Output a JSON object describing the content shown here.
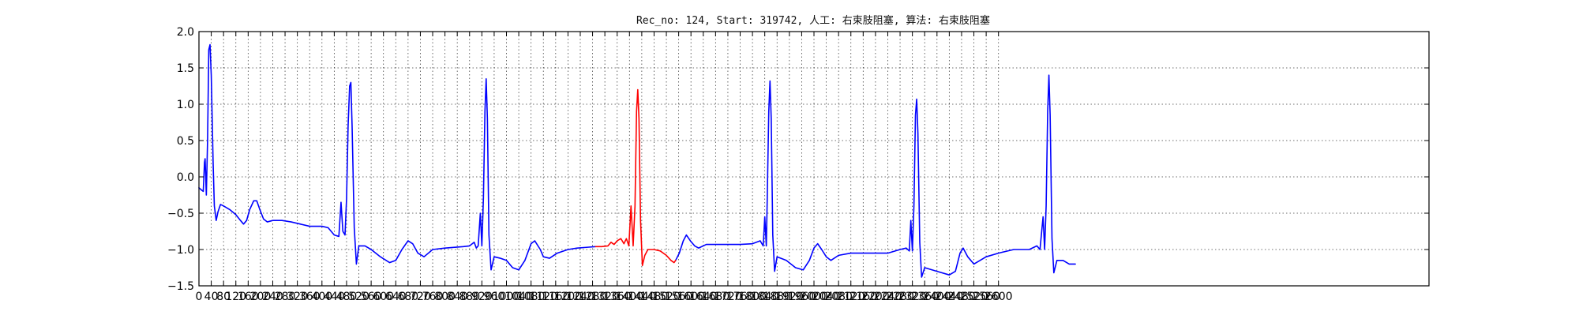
{
  "chart_data": {
    "type": "line",
    "title": "Rec_no: 124, Start: 319742, 人工: 右束肢阻塞, 算法: 右束肢阻塞",
    "xlabel": "",
    "ylabel": "",
    "xlim": [
      0,
      4000
    ],
    "ylim": [
      -1.5,
      2.0
    ],
    "grid": true,
    "yticks": [
      -1.5,
      -1.0,
      -0.5,
      0.0,
      0.5,
      1.0,
      1.5,
      2.0
    ],
    "ytick_labels": [
      "−1.5",
      "−1.0",
      "−0.5",
      "0.0",
      "0.5",
      "1.0",
      "1.5",
      "2.0"
    ],
    "xticks": [
      0,
      40,
      80,
      120,
      160,
      200,
      240,
      280,
      320,
      360,
      400,
      440,
      480,
      520,
      560,
      600,
      640,
      680,
      720,
      760,
      800,
      840,
      880,
      920,
      960,
      1000,
      1040,
      1080,
      1120,
      1160,
      1200,
      1240,
      1280,
      1320,
      1360,
      1400,
      1440,
      1480,
      1520,
      1560,
      1600,
      1640,
      1680,
      1720,
      1760,
      1800,
      1840,
      1880,
      1920,
      1960,
      2000,
      2040,
      2080,
      2120,
      2160,
      2200,
      2240,
      2280,
      2320,
      2360,
      2400,
      2440,
      2480,
      2520,
      2560,
      2600
    ],
    "xtick_labels": [
      "0",
      "40",
      "80",
      "120",
      "160",
      "200",
      "240",
      "280",
      "320",
      "360",
      "400",
      "440",
      "480",
      "520",
      "560",
      "600",
      "640",
      "680",
      "720",
      "760",
      "800",
      "840",
      "880",
      "920",
      "960",
      "1000",
      "1040",
      "1080",
      "1120",
      "1160",
      "1200",
      "1240",
      "1280",
      "1320",
      "1360",
      "1400",
      "1440",
      "1480",
      "1520",
      "1560",
      "1600",
      "1640",
      "1680",
      "1720",
      "1760",
      "1800",
      "1840",
      "1880",
      "1920",
      "1960",
      "2000",
      "2040",
      "2080",
      "2120",
      "2160",
      "2200",
      "2240",
      "2280",
      "2320",
      "2360",
      "2400",
      "2440",
      "2480",
      "2520",
      "2560",
      "2600"
    ],
    "series": [
      {
        "color": "#0000ff",
        "segments": [
          [
            [
              0,
              -0.15
            ],
            [
              8,
              -0.18
            ],
            [
              14,
              -0.2
            ],
            [
              18,
              0.2
            ],
            [
              20,
              0.25
            ],
            [
              24,
              -0.25
            ],
            [
              28,
              0.5
            ],
            [
              32,
              1.75
            ],
            [
              36,
              1.82
            ],
            [
              40,
              1.4
            ],
            [
              46,
              0.2
            ],
            [
              50,
              -0.4
            ],
            [
              56,
              -0.6
            ],
            [
              62,
              -0.48
            ],
            [
              70,
              -0.38
            ],
            [
              80,
              -0.4
            ],
            [
              100,
              -0.45
            ],
            [
              120,
              -0.52
            ],
            [
              135,
              -0.6
            ],
            [
              145,
              -0.65
            ],
            [
              155,
              -0.6
            ],
            [
              165,
              -0.45
            ],
            [
              178,
              -0.33
            ],
            [
              188,
              -0.33
            ],
            [
              198,
              -0.45
            ],
            [
              210,
              -0.58
            ],
            [
              222,
              -0.62
            ],
            [
              240,
              -0.6
            ],
            [
              270,
              -0.6
            ],
            [
              300,
              -0.62
            ],
            [
              330,
              -0.65
            ],
            [
              360,
              -0.68
            ],
            [
              400,
              -0.68
            ],
            [
              420,
              -0.7
            ],
            [
              440,
              -0.8
            ],
            [
              455,
              -0.82
            ],
            [
              462,
              -0.35
            ],
            [
              468,
              -0.75
            ],
            [
              475,
              -0.8
            ],
            [
              480,
              -0.3
            ],
            [
              485,
              0.7
            ],
            [
              490,
              1.25
            ],
            [
              494,
              1.3
            ],
            [
              498,
              0.7
            ],
            [
              505,
              -0.7
            ],
            [
              512,
              -1.2
            ],
            [
              520,
              -0.95
            ],
            [
              540,
              -0.95
            ],
            [
              560,
              -1.0
            ],
            [
              590,
              -1.1
            ],
            [
              620,
              -1.18
            ],
            [
              640,
              -1.15
            ],
            [
              660,
              -1.0
            ],
            [
              680,
              -0.88
            ],
            [
              695,
              -0.92
            ],
            [
              712,
              -1.05
            ],
            [
              732,
              -1.1
            ],
            [
              760,
              -1.0
            ],
            [
              800,
              -0.98
            ],
            [
              860,
              -0.96
            ],
            [
              880,
              -0.95
            ],
            [
              895,
              -0.9
            ],
            [
              902,
              -0.98
            ],
            [
              908,
              -0.95
            ],
            [
              915,
              -0.5
            ],
            [
              920,
              -0.95
            ],
            [
              925,
              -0.3
            ],
            [
              930,
              0.9
            ],
            [
              934,
              1.35
            ],
            [
              938,
              0.8
            ],
            [
              943,
              -0.8
            ],
            [
              950,
              -1.28
            ],
            [
              960,
              -1.1
            ],
            [
              980,
              -1.12
            ],
            [
              1000,
              -1.15
            ],
            [
              1020,
              -1.25
            ],
            [
              1040,
              -1.28
            ],
            [
              1060,
              -1.15
            ],
            [
              1080,
              -0.92
            ],
            [
              1092,
              -0.88
            ],
            [
              1110,
              -1.0
            ],
            [
              1120,
              -1.1
            ],
            [
              1140,
              -1.12
            ],
            [
              1165,
              -1.05
            ],
            [
              1200,
              -1.0
            ],
            [
              1230,
              -0.98
            ],
            [
              1260,
              -0.97
            ],
            [
              1290,
              -0.96
            ]
          ],
          [
            [
              1550,
              -1.15
            ],
            [
              1562,
              -1.05
            ],
            [
              1575,
              -0.88
            ],
            [
              1585,
              -0.8
            ],
            [
              1598,
              -0.88
            ],
            [
              1612,
              -0.95
            ],
            [
              1625,
              -0.98
            ],
            [
              1650,
              -0.93
            ],
            [
              1700,
              -0.93
            ],
            [
              1760,
              -0.93
            ],
            [
              1800,
              -0.92
            ],
            [
              1825,
              -0.88
            ],
            [
              1835,
              -0.95
            ],
            [
              1840,
              -0.55
            ],
            [
              1845,
              -0.95
            ],
            [
              1848,
              -0.3
            ],
            [
              1853,
              0.9
            ],
            [
              1857,
              1.32
            ],
            [
              1861,
              0.8
            ],
            [
              1866,
              -0.8
            ],
            [
              1872,
              -1.3
            ],
            [
              1880,
              -1.1
            ],
            [
              1910,
              -1.15
            ],
            [
              1940,
              -1.25
            ],
            [
              1965,
              -1.28
            ],
            [
              1985,
              -1.15
            ],
            [
              2000,
              -0.98
            ],
            [
              2012,
              -0.92
            ],
            [
              2025,
              -1.0
            ],
            [
              2040,
              -1.1
            ],
            [
              2055,
              -1.15
            ],
            [
              2080,
              -1.08
            ],
            [
              2120,
              -1.05
            ],
            [
              2160,
              -1.05
            ],
            [
              2200,
              -1.05
            ],
            [
              2240,
              -1.05
            ],
            [
              2280,
              -1.0
            ],
            [
              2300,
              -0.98
            ],
            [
              2310,
              -1.02
            ],
            [
              2315,
              -0.6
            ],
            [
              2320,
              -1.02
            ],
            [
              2325,
              -0.4
            ],
            [
              2330,
              0.85
            ],
            [
              2334,
              1.07
            ],
            [
              2338,
              0.6
            ],
            [
              2344,
              -0.9
            ],
            [
              2350,
              -1.38
            ],
            [
              2360,
              -1.25
            ],
            [
              2400,
              -1.3
            ],
            [
              2440,
              -1.35
            ],
            [
              2460,
              -1.3
            ],
            [
              2475,
              -1.05
            ],
            [
              2485,
              -0.98
            ],
            [
              2500,
              -1.1
            ],
            [
              2520,
              -1.2
            ],
            [
              2560,
              -1.1
            ],
            [
              2600,
              -1.05
            ],
            [
              2650,
              -1.0
            ],
            [
              2700,
              -1.0
            ],
            [
              2725,
              -0.95
            ],
            [
              2735,
              -1.0
            ],
            [
              2745,
              -0.55
            ],
            [
              2750,
              -1.0
            ],
            [
              2755,
              -0.4
            ],
            [
              2760,
              0.9
            ],
            [
              2764,
              1.4
            ],
            [
              2768,
              0.85
            ],
            [
              2774,
              -0.85
            ],
            [
              2780,
              -1.32
            ],
            [
              2790,
              -1.15
            ],
            [
              2810,
              -1.15
            ],
            [
              2830,
              -1.2
            ],
            [
              2850,
              -1.2
            ]
          ]
        ]
      },
      {
        "color": "#ff0000",
        "segments": [
          [
            [
              1290,
              -0.96
            ],
            [
              1310,
              -0.96
            ],
            [
              1330,
              -0.95
            ],
            [
              1340,
              -0.9
            ],
            [
              1350,
              -0.93
            ],
            [
              1360,
              -0.88
            ],
            [
              1372,
              -0.85
            ],
            [
              1382,
              -0.92
            ],
            [
              1390,
              -0.85
            ],
            [
              1398,
              -0.95
            ],
            [
              1405,
              -0.4
            ],
            [
              1412,
              -0.95
            ],
            [
              1418,
              -0.4
            ],
            [
              1423,
              0.9
            ],
            [
              1427,
              1.2
            ],
            [
              1431,
              0.8
            ],
            [
              1436,
              -0.6
            ],
            [
              1442,
              -1.22
            ],
            [
              1450,
              -1.08
            ],
            [
              1460,
              -1.0
            ],
            [
              1480,
              -1.0
            ],
            [
              1500,
              -1.02
            ],
            [
              1520,
              -1.08
            ],
            [
              1535,
              -1.15
            ],
            [
              1545,
              -1.18
            ],
            [
              1550,
              -1.15
            ]
          ]
        ]
      }
    ]
  }
}
